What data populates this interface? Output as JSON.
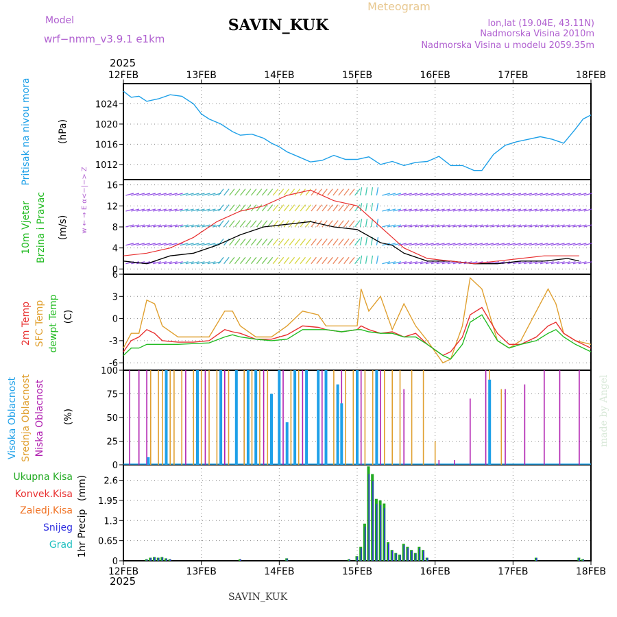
{
  "header": {
    "model_label": "Model",
    "model_name": "wrf−nmm_v3.9.1  e1km",
    "station": "SAVIN_KUK",
    "chart_title": "Meteogram",
    "lonlat": "lon,lat (19.04E, 43.11N)",
    "elevation": "Nadmorska Visina 2010m",
    "model_elevation": "Nadmorska Visina u modelu 2059.35m",
    "year_top": "2025",
    "year_bottom": "2025",
    "footer_station": "SAVIN_KUK",
    "credit": "made by Angel"
  },
  "colors": {
    "pressure": "#1ea0e8",
    "temp2m": "#e83030",
    "sfc_temp": "#e0a030",
    "dewpt": "#22bb22",
    "visoka": "#1ea0e8",
    "srednja": "#e0a030",
    "niska": "#b020b0",
    "ukupna": "#22aa22",
    "konvek": "#e83030",
    "zaledj": "#f07020",
    "snijeg": "#3030e0",
    "grad": "#20c0c0"
  },
  "chart_data": [
    {
      "type": "line",
      "panel": "pressure",
      "ylabel": "Pritisak na nivou mora",
      "unit": "(hPa)",
      "ylim": [
        1009,
        1028
      ],
      "yticks": [
        1012,
        1016,
        1020,
        1024
      ],
      "x_days": [
        0,
        0.1,
        0.2,
        0.3,
        0.45,
        0.6,
        0.75,
        0.9,
        1.0,
        1.1,
        1.25,
        1.4,
        1.5,
        1.65,
        1.8,
        1.9,
        2.0,
        2.1,
        2.25,
        2.4,
        2.55,
        2.7,
        2.85,
        3.0,
        3.15,
        3.3,
        3.45,
        3.6,
        3.75,
        3.9,
        4.05,
        4.2,
        4.35,
        4.5,
        4.6,
        4.75,
        4.9,
        5.05,
        5.2,
        5.35,
        5.5,
        5.65,
        5.8,
        5.9,
        6.0
      ],
      "values": [
        1026.5,
        1025.3,
        1025.5,
        1024.5,
        1025.0,
        1025.8,
        1025.5,
        1024.0,
        1022.0,
        1021.0,
        1020.0,
        1018.5,
        1017.8,
        1018.0,
        1017.2,
        1016.2,
        1015.5,
        1014.5,
        1013.5,
        1012.5,
        1012.8,
        1013.8,
        1013.0,
        1013.0,
        1013.5,
        1012.0,
        1012.6,
        1011.8,
        1012.4,
        1012.6,
        1013.6,
        1011.8,
        1011.8,
        1010.8,
        1010.8,
        1014.0,
        1015.8,
        1016.5,
        1017.0,
        1017.5,
        1017.0,
        1016.2,
        1019.0,
        1021.0,
        1021.8
      ]
    },
    {
      "type": "line",
      "panel": "wind",
      "ylabel": "10m Vjetar Brzina i Pravac",
      "unit": "(m/s)",
      "direction_legend": "w ← → E   α<−|−> Z",
      "ylim": [
        -1,
        17
      ],
      "yticks": [
        0,
        4,
        8,
        12,
        16
      ],
      "x_days": [
        0,
        0.3,
        0.6,
        0.9,
        1.2,
        1.5,
        1.8,
        2.1,
        2.4,
        2.7,
        3.0,
        3.3,
        3.45,
        3.6,
        3.9,
        4.2,
        4.5,
        4.8,
        5.1,
        5.4,
        5.7,
        5.85
      ],
      "series": [
        {
          "name": "10m Vjetar",
          "color": "#000000",
          "values": [
            1.5,
            1.0,
            2.5,
            3.0,
            4.5,
            6.5,
            8.0,
            8.5,
            9.0,
            8.0,
            7.5,
            5.0,
            4.5,
            3.0,
            1.5,
            1.5,
            1.0,
            1.0,
            1.5,
            1.5,
            2.0,
            1.5
          ]
        },
        {
          "name": "",
          "color": "#e83030",
          "values": [
            2.5,
            3.0,
            4.0,
            6.0,
            9.0,
            11.0,
            12.0,
            14.0,
            15.0,
            13.0,
            12.0,
            8.0,
            6.0,
            4.0,
            2.0,
            1.5,
            1.0,
            1.5,
            2.0,
            2.5,
            2.5,
            2.5
          ]
        }
      ]
    },
    {
      "type": "line",
      "panel": "temperature",
      "ylabel": [
        "2m Temp",
        "SFC Temp",
        "dewpt Temp"
      ],
      "unit": "(C)",
      "ylim": [
        -7,
        6
      ],
      "yticks": [
        -6,
        -3,
        0,
        3,
        6
      ],
      "x_days": [
        0,
        0.1,
        0.2,
        0.3,
        0.4,
        0.5,
        0.7,
        0.9,
        1.1,
        1.3,
        1.4,
        1.5,
        1.7,
        1.9,
        2.1,
        2.3,
        2.5,
        2.6,
        2.8,
        3.0,
        3.05,
        3.15,
        3.3,
        3.45,
        3.6,
        3.75,
        3.9,
        4.1,
        4.2,
        4.35,
        4.45,
        4.6,
        4.8,
        4.95,
        5.1,
        5.3,
        5.45,
        5.55,
        5.65,
        5.8,
        6.0
      ],
      "series": [
        {
          "name": "2m Temp",
          "color": "#e83030",
          "values": [
            -4.5,
            -3.0,
            -2.5,
            -1.5,
            -2.0,
            -3.0,
            -3.2,
            -3.2,
            -3.0,
            -1.5,
            -1.8,
            -2.0,
            -2.8,
            -2.8,
            -2.2,
            -1.0,
            -1.2,
            -1.5,
            -1.8,
            -1.5,
            -1.0,
            -1.5,
            -2.0,
            -1.8,
            -2.5,
            -2.0,
            -3.5,
            -5.0,
            -4.5,
            -2.5,
            0.5,
            1.5,
            -2.0,
            -3.5,
            -3.5,
            -2.5,
            -1.0,
            -0.5,
            -2.0,
            -3.0,
            -4.0
          ]
        },
        {
          "name": "SFC Temp",
          "color": "#e0a030",
          "values": [
            -4.0,
            -2.0,
            -2.0,
            2.5,
            2.0,
            -1.0,
            -2.5,
            -2.5,
            -2.5,
            1.0,
            1.0,
            -1.0,
            -2.5,
            -2.5,
            -1.0,
            1.0,
            0.5,
            -1.0,
            -1.0,
            -1.0,
            4.0,
            1.0,
            3.0,
            -1.5,
            2.0,
            -1.0,
            -3.0,
            -6.0,
            -5.5,
            -1.0,
            5.5,
            4.0,
            -3.0,
            -4.0,
            -3.0,
            1.0,
            4.0,
            2.0,
            -2.0,
            -3.0,
            -3.5
          ]
        },
        {
          "name": "dewpt Temp",
          "color": "#22bb22",
          "values": [
            -5.0,
            -4.0,
            -4.0,
            -3.5,
            -3.5,
            -3.5,
            -3.5,
            -3.4,
            -3.3,
            -2.5,
            -2.2,
            -2.5,
            -2.8,
            -3.0,
            -2.8,
            -1.5,
            -1.5,
            -1.5,
            -1.8,
            -1.5,
            -1.5,
            -1.8,
            -2.0,
            -2.0,
            -2.5,
            -2.5,
            -3.5,
            -5.0,
            -5.5,
            -3.5,
            -0.5,
            0.5,
            -3.0,
            -4.0,
            -3.5,
            -3.0,
            -2.0,
            -1.5,
            -2.5,
            -3.5,
            -4.5
          ]
        }
      ]
    },
    {
      "type": "bar",
      "panel": "clouds",
      "ylabel": [
        "Visoka Oblacnost",
        "Srednja Oblacnost",
        "Niska Oblacnost"
      ],
      "unit": "(%)",
      "ylim": [
        0,
        100
      ],
      "yticks": [
        0,
        25,
        50,
        75,
        100
      ],
      "series": [
        {
          "name": "Niska Oblacnost",
          "color": "#b020b0",
          "x_days": [
            0.08,
            0.2,
            0.3,
            0.55,
            0.8,
            1.05,
            1.3,
            1.55,
            1.8,
            2.05,
            2.3,
            2.55,
            2.8,
            3.05,
            3.3,
            3.6,
            4.05,
            4.25,
            4.45,
            4.65,
            4.9,
            5.15,
            5.4,
            5.6,
            5.85
          ],
          "values": [
            100,
            100,
            100,
            100,
            100,
            100,
            100,
            100,
            100,
            100,
            100,
            100,
            100,
            100,
            100,
            80,
            5,
            5,
            70,
            100,
            80,
            85,
            100,
            100,
            100
          ]
        },
        {
          "name": "Srednja Oblacnost",
          "color": "#e0a030",
          "x_days": [
            0.35,
            0.45,
            0.5,
            0.6,
            0.65,
            0.75,
            0.9,
            1.0,
            1.1,
            1.2,
            1.35,
            1.45,
            1.55,
            1.65,
            1.75,
            1.85,
            2.0,
            2.15,
            2.25,
            2.35,
            2.5,
            2.6,
            2.7,
            2.85,
            2.95,
            3.1,
            3.2,
            3.35,
            3.45,
            3.55,
            3.7,
            3.85,
            4.0,
            4.7,
            4.85
          ],
          "values": [
            100,
            100,
            100,
            100,
            100,
            100,
            100,
            100,
            100,
            100,
            100,
            100,
            100,
            100,
            100,
            100,
            100,
            100,
            100,
            100,
            100,
            100,
            100,
            100,
            100,
            100,
            100,
            100,
            100,
            100,
            100,
            100,
            25,
            100,
            80
          ]
        },
        {
          "name": "Visoka Oblacnost",
          "color": "#1ea0e8",
          "x_days": [
            0.32,
            0.55,
            0.95,
            1.25,
            1.45,
            1.6,
            1.7,
            1.9,
            2.0,
            2.1,
            2.2,
            2.35,
            2.5,
            2.6,
            2.75,
            2.8,
            3.0,
            3.25,
            4.7
          ],
          "values": [
            8,
            100,
            100,
            100,
            100,
            100,
            100,
            75,
            100,
            45,
            100,
            100,
            100,
            100,
            85,
            65,
            100,
            100,
            90
          ]
        }
      ]
    },
    {
      "type": "bar",
      "panel": "precip",
      "ylabel": "1hr Precip",
      "unit": "(mm)",
      "legend": [
        "Ukupna Kisa",
        "Konvek.Kisa",
        "Zaledj.Kisa",
        "Snijeg",
        "Grad"
      ],
      "ylim": [
        0,
        3.1
      ],
      "yticks": [
        0,
        0.65,
        1.3,
        1.95,
        2.6
      ],
      "x_days": [
        0.3,
        0.35,
        0.4,
        0.45,
        0.5,
        0.55,
        0.6,
        1.5,
        2.1,
        2.9,
        3.0,
        3.05,
        3.1,
        3.15,
        3.2,
        3.25,
        3.3,
        3.35,
        3.4,
        3.45,
        3.5,
        3.55,
        3.6,
        3.65,
        3.7,
        3.75,
        3.8,
        3.85,
        3.9,
        5.3,
        5.85,
        5.9
      ],
      "values": [
        0.05,
        0.1,
        0.12,
        0.1,
        0.12,
        0.08,
        0.05,
        0.05,
        0.08,
        0.05,
        0.15,
        0.45,
        1.2,
        3.05,
        2.8,
        2.0,
        1.95,
        1.85,
        0.6,
        0.35,
        0.25,
        0.2,
        0.55,
        0.45,
        0.35,
        0.25,
        0.45,
        0.35,
        0.1,
        0.1,
        0.1,
        0.05
      ]
    }
  ],
  "x_axis": {
    "ticks_days": [
      0,
      1,
      2,
      3,
      4,
      5,
      6
    ],
    "labels": [
      "12FEB",
      "13FEB",
      "14FEB",
      "15FEB",
      "16FEB",
      "17FEB",
      "18FEB"
    ]
  }
}
